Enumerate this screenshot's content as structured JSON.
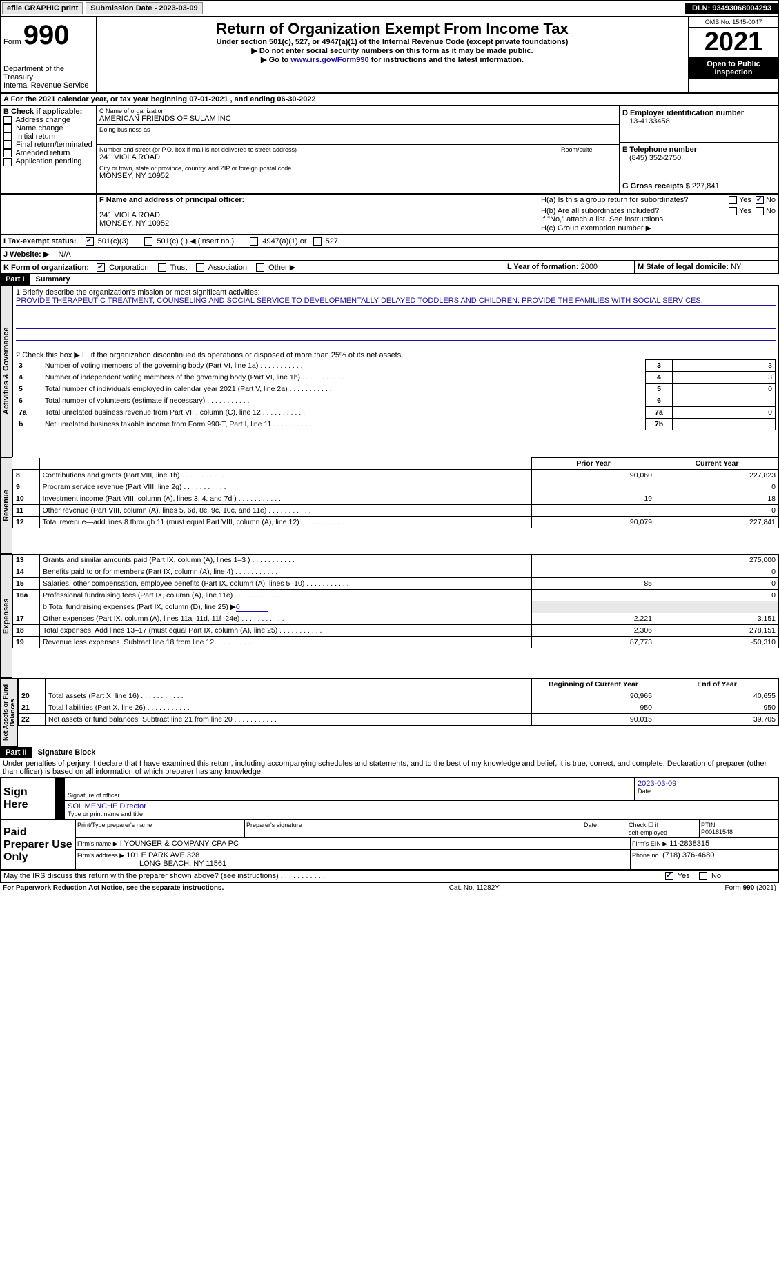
{
  "topbar": {
    "efile_label": "efile GRAPHIC print",
    "submission": "Submission Date - 2023-03-09",
    "dln": "DLN: 93493068004293"
  },
  "header": {
    "form_word": "Form",
    "form_num": "990",
    "title": "Return of Organization Exempt From Income Tax",
    "subtitle": "Under section 501(c), 527, or 4947(a)(1) of the Internal Revenue Code (except private foundations)",
    "note1": "▶ Do not enter social security numbers on this form as it may be made public.",
    "note2_prefix": "▶ Go to ",
    "note2_link": "www.irs.gov/Form990",
    "note2_suffix": " for instructions and the latest information.",
    "dept": "Department of the Treasury",
    "irs": "Internal Revenue Service",
    "omb": "OMB No. 1545-0047",
    "year": "2021",
    "inspect1": "Open to Public",
    "inspect2": "Inspection"
  },
  "lineA": "A For the 2021 calendar year, or tax year beginning 07-01-2021   , and ending 06-30-2022",
  "boxB": {
    "title": "B Check if applicable:",
    "items": [
      "Address change",
      "Name change",
      "Initial return",
      "Final return/terminated",
      "Amended return",
      "Application pending"
    ]
  },
  "boxC": {
    "label": "C Name of organization",
    "name": "AMERICAN FRIENDS OF SULAM INC",
    "dba_label": "Doing business as",
    "addr_label": "Number and street (or P.O. box if mail is not delivered to street address)",
    "room_label": "Room/suite",
    "addr": "241 VIOLA ROAD",
    "city_label": "City or town, state or province, country, and ZIP or foreign postal code",
    "city": "MONSEY, NY  10952"
  },
  "boxD": {
    "label": "D Employer identification number",
    "value": "13-4133458"
  },
  "boxE": {
    "label": "E Telephone number",
    "value": "(845) 352-2750"
  },
  "boxG": {
    "label": "G Gross receipts $",
    "value": "227,841"
  },
  "boxF": {
    "label": "F  Name and address of principal officer:",
    "addr1": "241 VIOLA ROAD",
    "addr2": "MONSEY, NY  10952"
  },
  "boxH": {
    "a_label": "H(a)  Is this a group return for subordinates?",
    "b_label": "H(b)  Are all subordinates included?",
    "note": "If \"No,\" attach a list. See instructions.",
    "c_label": "H(c)  Group exemption number ▶",
    "yes": "Yes",
    "no": "No"
  },
  "boxI": {
    "label": "I   Tax-exempt status:",
    "o1": "501(c)(3)",
    "o2": "501(c) (  ) ◀ (insert no.)",
    "o3": "4947(a)(1) or",
    "o4": "527"
  },
  "boxJ": {
    "label": "J   Website: ▶",
    "value": "N/A"
  },
  "boxK": {
    "label": "K Form of organization:",
    "o1": "Corporation",
    "o2": "Trust",
    "o3": "Association",
    "o4": "Other ▶"
  },
  "boxL": {
    "label": "L Year of formation:",
    "value": "2000"
  },
  "boxM": {
    "label": "M State of legal domicile:",
    "value": "NY"
  },
  "part1": {
    "tag": "Part I",
    "title": "Summary"
  },
  "p1": {
    "l1_label": "1   Briefly describe the organization's mission or most significant activities:",
    "l1_text": "PROVIDE THERAPEUTIC TREATMENT, COUNSELING AND SOCIAL SERVICE TO DEVELOPMENTALLY DELAYED TODDLERS AND CHILDREN. PROVIDE THE FAMILIES WITH SOCIAL SERVICES.",
    "l2": "2    Check this box ▶ ☐  if the organization discontinued its operations or disposed of more than 25% of its net assets.",
    "rows_a": [
      {
        "n": "3",
        "t": "Number of voting members of the governing body (Part VI, line 1a)",
        "box": "3",
        "v": "3"
      },
      {
        "n": "4",
        "t": "Number of independent voting members of the governing body (Part VI, line 1b)",
        "box": "4",
        "v": "3"
      },
      {
        "n": "5",
        "t": "Total number of individuals employed in calendar year 2021 (Part V, line 2a)",
        "box": "5",
        "v": "0"
      },
      {
        "n": "6",
        "t": "Total number of volunteers (estimate if necessary)",
        "box": "6",
        "v": ""
      },
      {
        "n": "7a",
        "t": "Total unrelated business revenue from Part VIII, column (C), line 12",
        "box": "7a",
        "v": "0"
      },
      {
        "n": "b",
        "t": "Net unrelated business taxable income from Form 990-T, Part I, line 11",
        "box": "7b",
        "v": ""
      }
    ],
    "col_prior": "Prior Year",
    "col_curr": "Current Year",
    "rev_rows": [
      {
        "n": "8",
        "t": "Contributions and grants (Part VIII, line 1h)",
        "p": "90,060",
        "c": "227,823"
      },
      {
        "n": "9",
        "t": "Program service revenue (Part VIII, line 2g)",
        "p": "",
        "c": "0"
      },
      {
        "n": "10",
        "t": "Investment income (Part VIII, column (A), lines 3, 4, and 7d )",
        "p": "19",
        "c": "18"
      },
      {
        "n": "11",
        "t": "Other revenue (Part VIII, column (A), lines 5, 6d, 8c, 9c, 10c, and 11e)",
        "p": "",
        "c": "0"
      },
      {
        "n": "12",
        "t": "Total revenue—add lines 8 through 11 (must equal Part VIII, column (A), line 12)",
        "p": "90,079",
        "c": "227,841"
      }
    ],
    "exp_rows": [
      {
        "n": "13",
        "t": "Grants and similar amounts paid (Part IX, column (A), lines 1–3 )",
        "p": "",
        "c": "275,000"
      },
      {
        "n": "14",
        "t": "Benefits paid to or for members (Part IX, column (A), line 4)",
        "p": "",
        "c": "0"
      },
      {
        "n": "15",
        "t": "Salaries, other compensation, employee benefits (Part IX, column (A), lines 5–10)",
        "p": "85",
        "c": "0"
      },
      {
        "n": "16a",
        "t": "Professional fundraising fees (Part IX, column (A), line 11e)",
        "p": "",
        "c": "0"
      }
    ],
    "l16b_label": "b   Total fundraising expenses (Part IX, column (D), line 25) ▶",
    "l16b_val": "0",
    "exp_rows2": [
      {
        "n": "17",
        "t": "Other expenses (Part IX, column (A), lines 11a–11d, 11f–24e)",
        "p": "2,221",
        "c": "3,151"
      },
      {
        "n": "18",
        "t": "Total expenses. Add lines 13–17 (must equal Part IX, column (A), line 25)",
        "p": "2,306",
        "c": "278,151"
      },
      {
        "n": "19",
        "t": "Revenue less expenses. Subtract line 18 from line 12",
        "p": "87,773",
        "c": "-50,310"
      }
    ],
    "col_beg": "Beginning of Current Year",
    "col_end": "End of Year",
    "na_rows": [
      {
        "n": "20",
        "t": "Total assets (Part X, line 16)",
        "p": "90,965",
        "c": "40,655"
      },
      {
        "n": "21",
        "t": "Total liabilities (Part X, line 26)",
        "p": "950",
        "c": "950"
      },
      {
        "n": "22",
        "t": "Net assets or fund balances. Subtract line 21 from line 20",
        "p": "90,015",
        "c": "39,705"
      }
    ]
  },
  "tabs": {
    "act": "Activities & Governance",
    "rev": "Revenue",
    "exp": "Expenses",
    "na": "Net Assets or Fund Balances"
  },
  "part2": {
    "tag": "Part II",
    "title": "Signature Block",
    "decl": "Under penalties of perjury, I declare that I have examined this return, including accompanying schedules and statements, and to the best of my knowledge and belief, it is true, correct, and complete. Declaration of preparer (other than officer) is based on all information of which preparer has any knowledge."
  },
  "sign": {
    "here": "Sign Here",
    "sig_label": "Signature of officer",
    "date": "2023-03-09",
    "date_label": "Date",
    "name": "SOL MENCHE  Director",
    "name_label": "Type or print name and title"
  },
  "prep": {
    "title": "Paid Preparer Use Only",
    "h1": "Print/Type preparer's name",
    "h2": "Preparer's signature",
    "h3": "Date",
    "h4_pre": "Check ☐ if",
    "h4": "self-employed",
    "ptin_label": "PTIN",
    "ptin": "P00181548",
    "firm_label": "Firm's name   ▶",
    "firm": "I YOUNGER & COMPANY CPA PC",
    "ein_label": "Firm's EIN ▶",
    "ein": "11-2838315",
    "addr_label": "Firm's address ▶",
    "addr1": "101 E PARK AVE 328",
    "addr2": "LONG BEACH, NY  11561",
    "phone_label": "Phone no.",
    "phone": "(718) 376-4680"
  },
  "discuss": {
    "q": "May the IRS discuss this return with the preparer shown above? (see instructions)",
    "yes": "Yes",
    "no": "No"
  },
  "footer": {
    "left": "For Paperwork Reduction Act Notice, see the separate instructions.",
    "mid": "Cat. No. 11282Y",
    "right": "Form 990 (2021)"
  }
}
